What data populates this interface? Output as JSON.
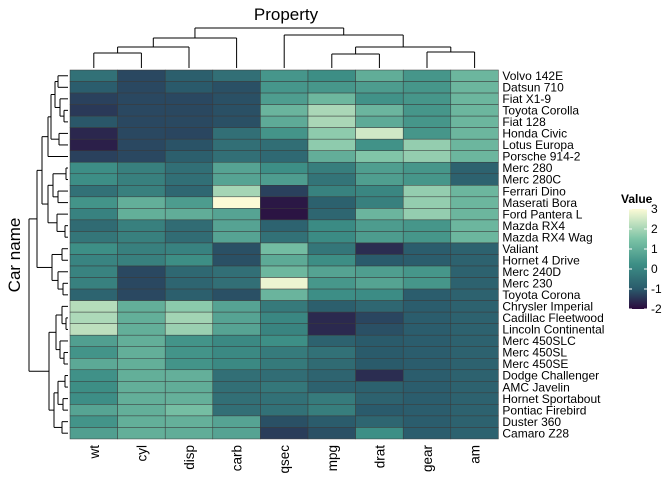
{
  "chart_data": {
    "type": "heatmap",
    "title": "Property",
    "xlabel": "Property",
    "ylabel": "Car name",
    "legend": {
      "title": "Value",
      "ticks": [
        3,
        2,
        1,
        0,
        -1,
        -2
      ],
      "tick_labels": [
        "3",
        "2",
        "1",
        "0",
        "-1",
        "-2"
      ],
      "range": [
        -2,
        3
      ],
      "placement": "right"
    },
    "colors": {
      "low": "#2b0a3d",
      "mid_low": "#2a5a6b",
      "mid": "#3d8f86",
      "mid_high": "#7cc3a6",
      "high": "#fcfbd6",
      "border": "#3a3a3a"
    },
    "columns": [
      "wt",
      "cyl",
      "disp",
      "carb",
      "qsec",
      "mpg",
      "drat",
      "gear",
      "am"
    ],
    "rows": [
      "Volvo 142E",
      "Datsun 710",
      "Fiat X1-9",
      "Toyota Corolla",
      "Fiat 128",
      "Honda Civic",
      "Lotus Europa",
      "Porsche 914-2",
      "Merc 280",
      "Merc 280C",
      "Ferrari Dino",
      "Maserati Bora",
      "Ford Pantera L",
      "Mazda RX4",
      "Mazda RX4 Wag",
      "Valiant",
      "Hornet 4 Drive",
      "Merc 240D",
      "Merc 230",
      "Toyota Corona",
      "Chrysler Imperial",
      "Cadillac Fleetwood",
      "Lincoln Continental",
      "Merc 450SLC",
      "Merc 450SL",
      "Merc 450SE",
      "Dodge Challenger",
      "AMC Javelin",
      "Hornet Sportabout",
      "Pontiac Firebird",
      "Duster 360",
      "Camaro Z28"
    ],
    "values": [
      [
        -0.45,
        -1.22,
        -0.89,
        -0.5,
        0.43,
        0.22,
        0.96,
        0.42,
        1.19
      ],
      [
        -0.92,
        -1.22,
        -0.99,
        -1.12,
        0.43,
        0.45,
        0.57,
        0.42,
        1.19
      ],
      [
        -1.31,
        -1.22,
        -1.22,
        -1.12,
        0.59,
        1.2,
        0.33,
        0.42,
        1.19
      ],
      [
        -1.41,
        -1.22,
        -1.23,
        -1.12,
        1.15,
        2.04,
        1.17,
        0.42,
        1.19
      ],
      [
        -1.04,
        -1.22,
        -1.21,
        -1.12,
        0.91,
        2.04,
        0.9,
        0.42,
        1.19
      ],
      [
        -1.64,
        -1.22,
        -1.25,
        -0.5,
        0.38,
        1.71,
        2.49,
        0.42,
        1.19
      ],
      [
        -1.74,
        -1.22,
        -1.09,
        -0.5,
        -0.53,
        1.71,
        0.32,
        1.78,
        1.19
      ],
      [
        -1.31,
        -1.22,
        -0.89,
        -0.5,
        -0.64,
        1.0,
        1.56,
        1.78,
        1.19
      ],
      [
        0.23,
        -0.1,
        -0.51,
        0.74,
        0.25,
        -0.15,
        0.61,
        0.42,
        -0.81
      ],
      [
        0.23,
        -0.1,
        -0.51,
        0.74,
        0.59,
        -0.38,
        0.61,
        0.42,
        -0.81
      ],
      [
        -0.45,
        -0.1,
        -0.69,
        1.98,
        -1.31,
        -0.06,
        0.04,
        1.78,
        1.19
      ],
      [
        0.36,
        1.01,
        0.57,
        3.21,
        -1.82,
        -0.84,
        -0.11,
        1.78,
        1.19
      ],
      [
        -0.05,
        1.01,
        0.97,
        0.74,
        -1.87,
        -0.71,
        1.17,
        1.78,
        1.19
      ],
      [
        -0.61,
        -0.1,
        -0.57,
        0.74,
        -0.78,
        0.15,
        0.57,
        0.42,
        1.19
      ],
      [
        -0.35,
        -0.1,
        -0.57,
        0.74,
        -0.46,
        0.15,
        0.57,
        0.42,
        1.19
      ],
      [
        0.25,
        -0.1,
        -0.05,
        -1.12,
        1.33,
        -0.33,
        -1.56,
        -0.93,
        -0.81
      ],
      [
        -0.0,
        -0.1,
        0.22,
        -1.12,
        0.89,
        0.22,
        -0.97,
        -0.93,
        -0.81
      ],
      [
        -0.03,
        -1.22,
        -0.68,
        -0.5,
        1.2,
        0.72,
        0.61,
        0.42,
        -0.81
      ],
      [
        -0.07,
        -1.22,
        -0.73,
        -0.5,
        2.83,
        0.45,
        0.73,
        0.42,
        -0.81
      ],
      [
        -0.77,
        -1.22,
        -0.89,
        -1.12,
        1.14,
        0.23,
        0.19,
        -0.93,
        -0.81
      ],
      [
        2.17,
        1.01,
        1.68,
        0.74,
        -0.24,
        -0.89,
        -0.69,
        -0.93,
        -0.81
      ],
      [
        2.08,
        1.01,
        1.95,
        0.74,
        0.07,
        -1.61,
        -1.25,
        -0.93,
        -0.81
      ],
      [
        2.26,
        1.01,
        1.85,
        0.74,
        -0.02,
        -1.61,
        -1.12,
        -0.93,
        -0.81
      ],
      [
        0.64,
        1.01,
        0.36,
        0.11,
        0.25,
        -0.81,
        -0.98,
        -0.93,
        -0.81
      ],
      [
        0.36,
        1.01,
        0.36,
        0.11,
        -0.23,
        -0.46,
        -0.98,
        -0.93,
        -0.81
      ],
      [
        0.87,
        1.01,
        0.36,
        0.11,
        -0.25,
        -0.61,
        -0.98,
        -0.93,
        -0.81
      ],
      [
        0.31,
        1.01,
        1.03,
        -0.5,
        -0.55,
        -0.76,
        -1.56,
        -0.93,
        -0.81
      ],
      [
        0.22,
        1.01,
        0.97,
        -0.5,
        -0.31,
        -0.81,
        -0.84,
        -0.93,
        -0.81
      ],
      [
        0.23,
        1.01,
        1.04,
        -0.5,
        -0.46,
        -0.23,
        -0.82,
        -0.93,
        -0.81
      ],
      [
        0.75,
        1.01,
        1.37,
        -0.5,
        -0.45,
        -0.15,
        -0.97,
        -0.93,
        -0.81
      ],
      [
        0.36,
        1.01,
        1.04,
        0.74,
        -1.12,
        -0.96,
        -0.72,
        -0.93,
        -0.81
      ],
      [
        0.64,
        1.01,
        0.97,
        0.74,
        -1.36,
        -1.13,
        0.24,
        -0.93,
        -0.81
      ]
    ]
  }
}
